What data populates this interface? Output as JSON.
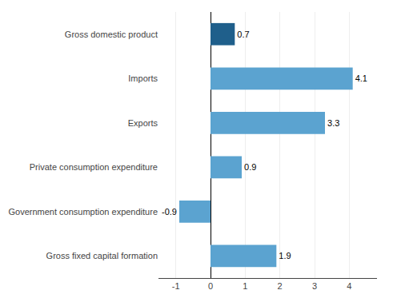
{
  "chart_data": {
    "type": "bar",
    "orientation": "horizontal",
    "categories": [
      "Gross fixed capital formation",
      "Government consumption expenditure",
      "Private consumption expenditure",
      "Exports",
      "Imports",
      "Gross domestic product"
    ],
    "values": [
      1.9,
      -0.9,
      0.9,
      3.3,
      4.1,
      0.7
    ],
    "colors": [
      "#5ba3d0",
      "#5ba3d0",
      "#5ba3d0",
      "#5ba3d0",
      "#5ba3d0",
      "#1f5f8b"
    ],
    "xlim": [
      -1.5,
      4.8
    ],
    "xticks": [
      -1,
      0,
      1,
      2,
      3,
      4
    ],
    "grid": true,
    "data_labels": true
  }
}
